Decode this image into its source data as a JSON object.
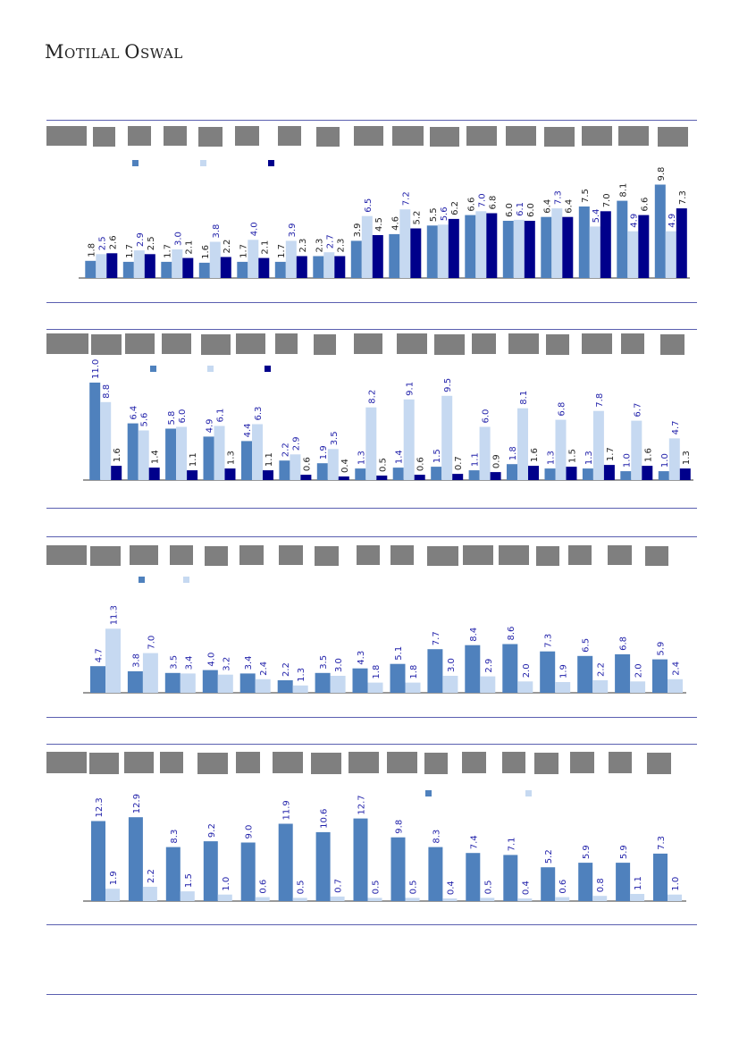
{
  "header": {
    "brand_first": "M",
    "brand_rest_1": "OTILAL ",
    "brand_second": "O",
    "brand_rest_2": "SWAL"
  },
  "colors": {
    "series1": "#4f81bd",
    "series2": "#c6d9f1",
    "series3": "#00008b",
    "axis": "#333333",
    "rule": "#5a5fb0",
    "redaction": "#7f7f7f"
  },
  "chart_data": [
    {
      "type": "bar",
      "series": [
        {
          "name": "",
          "values": [
            1.8,
            1.7,
            1.7,
            1.6,
            1.7,
            1.7,
            2.3,
            3.9,
            4.6,
            5.5,
            6.6,
            6.0,
            6.4,
            7.5,
            8.1,
            9.8
          ]
        },
        {
          "name": "",
          "values": [
            2.5,
            2.9,
            3.0,
            3.8,
            4.0,
            3.9,
            2.7,
            6.5,
            7.2,
            5.6,
            7.0,
            6.1,
            7.3,
            5.4,
            4.9,
            4.9
          ]
        },
        {
          "name": "",
          "values": [
            2.6,
            2.5,
            2.1,
            2.2,
            2.1,
            2.3,
            2.3,
            4.5,
            5.2,
            6.2,
            6.8,
            6.0,
            6.4,
            7.0,
            6.6,
            7.3
          ]
        }
      ],
      "ylim": [
        0,
        10.5
      ],
      "legend": "top-left"
    },
    {
      "type": "bar",
      "series": [
        {
          "name": "",
          "values": [
            11.0,
            6.4,
            5.8,
            4.9,
            4.4,
            2.2,
            1.9,
            1.3,
            1.4,
            1.5,
            1.1,
            1.8,
            1.3,
            1.3,
            1.0,
            1.0
          ]
        },
        {
          "name": "",
          "values": [
            8.8,
            5.6,
            6.0,
            6.1,
            6.3,
            2.9,
            3.5,
            8.2,
            9.1,
            9.5,
            6.0,
            8.1,
            6.8,
            7.8,
            6.7,
            4.7
          ]
        },
        {
          "name": "",
          "values": [
            1.6,
            1.4,
            1.1,
            1.3,
            1.1,
            0.6,
            0.4,
            0.5,
            0.6,
            0.7,
            0.9,
            1.6,
            1.5,
            1.7,
            1.6,
            1.3
          ]
        }
      ],
      "ylim": [
        0,
        11.5
      ],
      "legend": "top-left"
    },
    {
      "type": "bar",
      "series": [
        {
          "name": "",
          "values": [
            4.7,
            3.8,
            3.5,
            4.0,
            3.4,
            2.2,
            3.5,
            4.3,
            5.1,
            7.7,
            8.4,
            8.6,
            7.3,
            6.5,
            6.8,
            5.9
          ]
        },
        {
          "name": "",
          "values": [
            11.3,
            7.0,
            3.4,
            3.2,
            2.4,
            1.3,
            3.0,
            1.8,
            1.8,
            3.0,
            2.9,
            2.0,
            1.9,
            2.2,
            2.0,
            2.4
          ]
        }
      ],
      "ylim": [
        0,
        12.3
      ],
      "legend": "top-left"
    },
    {
      "type": "bar",
      "series": [
        {
          "name": "",
          "values": [
            12.3,
            12.9,
            8.3,
            9.2,
            9.0,
            11.9,
            10.6,
            12.7,
            9.8,
            8.3,
            7.4,
            7.1,
            5.2,
            5.9,
            5.9,
            7.3
          ]
        },
        {
          "name": "",
          "values": [
            1.9,
            2.2,
            1.5,
            1.0,
            0.6,
            0.5,
            0.7,
            0.5,
            0.5,
            0.4,
            0.5,
            0.4,
            0.6,
            0.8,
            1.1,
            1.0
          ]
        }
      ],
      "ylim": [
        0,
        13.2
      ],
      "legend": "top-right"
    }
  ]
}
